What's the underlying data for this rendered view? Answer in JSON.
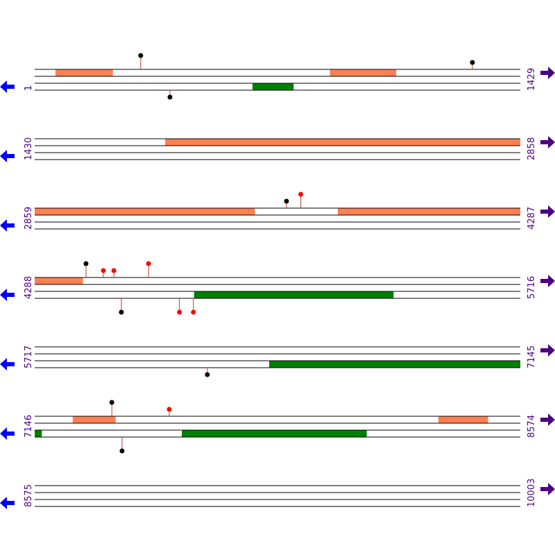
{
  "rows": [
    {
      "start": 1,
      "end": 1429,
      "top_features": [
        {
          "start": 62,
          "end": 230
        },
        {
          "start": 870,
          "end": 1064
        }
      ],
      "bottom_features": [
        {
          "start": 642,
          "end": 762
        }
      ],
      "top_sites": [
        {
          "pos": 313,
          "color": "black",
          "tall": true
        },
        {
          "pos": 1289,
          "color": "black",
          "tall": false
        }
      ],
      "bottom_sites": [
        {
          "pos": 399,
          "color": "black",
          "tall": false
        }
      ]
    },
    {
      "start": 1430,
      "end": 2858,
      "top_features": [
        {
          "start": 1814,
          "end": 2858
        }
      ],
      "bottom_features": [],
      "top_sites": [],
      "bottom_sites": []
    },
    {
      "start": 2859,
      "end": 4287,
      "top_features": [
        {
          "start": 2859,
          "end": 3506
        },
        {
          "start": 3751,
          "end": 4287
        }
      ],
      "bottom_features": [],
      "top_sites": [
        {
          "pos": 3600,
          "color": "black",
          "tall": false
        },
        {
          "pos": 3642,
          "color": "red",
          "tall": true
        }
      ],
      "bottom_sites": []
    },
    {
      "start": 4288,
      "end": 5716,
      "top_features": [
        {
          "start": 4288,
          "end": 4429
        }
      ],
      "bottom_features": [
        {
          "start": 4757,
          "end": 5343
        }
      ],
      "top_sites": [
        {
          "pos": 4439,
          "color": "black",
          "tall": true
        },
        {
          "pos": 4490,
          "color": "red",
          "tall": false
        },
        {
          "pos": 4521,
          "color": "red",
          "tall": false
        },
        {
          "pos": 4623,
          "color": "red",
          "tall": true
        }
      ],
      "bottom_sites": [
        {
          "pos": 4543,
          "color": "black",
          "tall": true
        },
        {
          "pos": 4714,
          "color": "red",
          "tall": true
        },
        {
          "pos": 4755,
          "color": "red",
          "tall": true
        }
      ]
    },
    {
      "start": 5717,
      "end": 7145,
      "top_features": [],
      "bottom_features": [
        {
          "start": 6407,
          "end": 7145
        }
      ],
      "top_sites": [],
      "bottom_sites": [
        {
          "pos": 6225,
          "color": "black",
          "tall": false
        }
      ]
    },
    {
      "start": 7146,
      "end": 8574,
      "top_features": [
        {
          "start": 7258,
          "end": 7383
        },
        {
          "start": 8334,
          "end": 8479
        }
      ],
      "bottom_features": [
        {
          "start": 7146,
          "end": 7166
        },
        {
          "start": 7579,
          "end": 8122
        }
      ],
      "top_sites": [
        {
          "pos": 7373,
          "color": "black",
          "tall": true
        },
        {
          "pos": 7542,
          "color": "red",
          "tall": false
        }
      ],
      "bottom_sites": [
        {
          "pos": 7403,
          "color": "black",
          "tall": true
        }
      ]
    },
    {
      "start": 8575,
      "end": 10003,
      "top_features": [],
      "bottom_features": [],
      "top_sites": [],
      "bottom_sites": []
    }
  ],
  "top_color": "#ff7f50",
  "bottom_color": "#008000"
}
